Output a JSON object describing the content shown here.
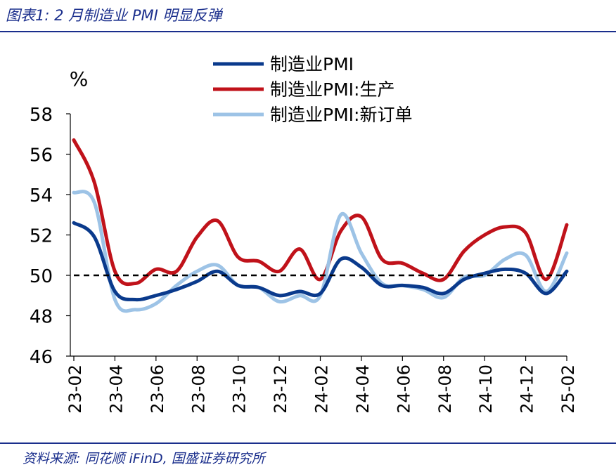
{
  "header": {
    "title": "图表1:  2 月制造业 PMI 明显反弹"
  },
  "footer": {
    "source": "资料来源:  同花顺 iFinD,  国盛证券研究所"
  },
  "colors": {
    "brand": "#1a2e8c",
    "series": [
      "#0a3a8c",
      "#c0121a",
      "#9dc3e6"
    ],
    "reference": "#000000"
  },
  "chart_data": {
    "type": "line",
    "ylabel": "%",
    "ylim": [
      46,
      58
    ],
    "yticks": [
      46,
      48,
      50,
      52,
      54,
      56,
      58
    ],
    "grid": false,
    "legend_position": "top-right",
    "reference_line": 50,
    "x": [
      "23-02",
      "23-03",
      "23-04",
      "23-05",
      "23-06",
      "23-07",
      "23-08",
      "23-09",
      "23-10",
      "23-11",
      "23-12",
      "24-01",
      "24-02",
      "24-03",
      "24-04",
      "24-05",
      "24-06",
      "24-07",
      "24-08",
      "24-09",
      "24-10",
      "24-11",
      "24-12",
      "25-01",
      "25-02"
    ],
    "xtick_labels": [
      "23-02",
      "23-04",
      "23-06",
      "23-08",
      "23-10",
      "23-12",
      "24-02",
      "24-04",
      "24-06",
      "24-08",
      "24-10",
      "24-12",
      "25-02"
    ],
    "series": [
      {
        "name": "制造业PMI",
        "values": [
          52.6,
          51.9,
          49.2,
          48.8,
          49.0,
          49.3,
          49.7,
          50.2,
          49.5,
          49.4,
          49.0,
          49.2,
          49.1,
          50.8,
          50.4,
          49.5,
          49.5,
          49.4,
          49.1,
          49.8,
          50.1,
          50.3,
          50.1,
          49.1,
          50.2
        ]
      },
      {
        "name": "制造业PMI:生产",
        "values": [
          56.7,
          54.6,
          50.2,
          49.6,
          50.3,
          50.2,
          51.9,
          52.7,
          50.9,
          50.7,
          50.2,
          51.3,
          49.8,
          52.2,
          52.9,
          50.8,
          50.6,
          50.1,
          49.8,
          51.2,
          52.0,
          52.4,
          52.1,
          49.8,
          52.5
        ]
      },
      {
        "name": "制造业PMI:新订单",
        "values": [
          54.1,
          53.6,
          48.8,
          48.3,
          48.6,
          49.5,
          50.2,
          50.5,
          49.5,
          49.4,
          48.7,
          49.0,
          49.0,
          53.0,
          51.1,
          49.6,
          49.5,
          49.3,
          48.9,
          49.9,
          50.0,
          50.8,
          51.0,
          49.2,
          51.1
        ]
      }
    ]
  }
}
